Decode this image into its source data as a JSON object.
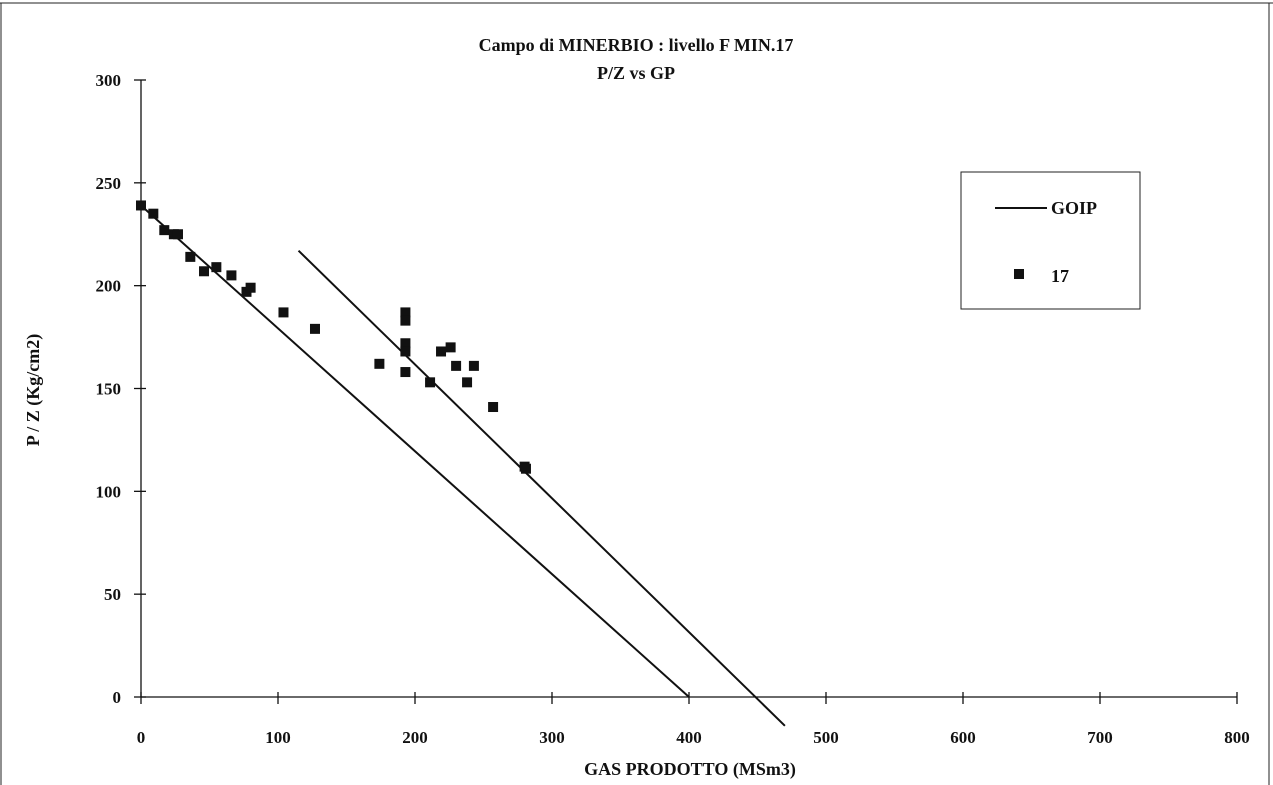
{
  "chart_data": {
    "type": "scatter",
    "title": "Campo di MINERBIO : livello F MIN.17",
    "subtitle": "P/Z vs GP",
    "xlabel": "GAS PRODOTTO (MSm3)",
    "ylabel": "P / Z (Kg/cm2)",
    "xlim": [
      0,
      800
    ],
    "ylim": [
      0,
      300
    ],
    "x_ticks": [
      "0",
      "100",
      "200",
      "300",
      "400",
      "500",
      "600",
      "700",
      "800"
    ],
    "y_ticks": [
      "0",
      "50",
      "100",
      "150",
      "200",
      "250",
      "300"
    ],
    "grid": false,
    "legend_position": "top-right",
    "series": [
      {
        "name": "GOIP",
        "type": "line",
        "color": "#111111",
        "segments": [
          [
            [
              0,
              239
            ],
            [
              400,
              0
            ]
          ],
          [
            [
              115,
              217
            ],
            [
              470,
              -14
            ]
          ]
        ]
      },
      {
        "name": "17",
        "type": "scatter",
        "marker": "square",
        "color": "#111111",
        "points": [
          [
            0,
            239
          ],
          [
            9,
            235
          ],
          [
            17,
            227
          ],
          [
            24,
            225
          ],
          [
            27,
            225
          ],
          [
            36,
            214
          ],
          [
            46,
            207
          ],
          [
            55,
            209
          ],
          [
            66,
            205
          ],
          [
            77,
            197
          ],
          [
            80,
            199
          ],
          [
            104,
            187
          ],
          [
            127,
            179
          ],
          [
            174,
            162
          ],
          [
            193,
            187
          ],
          [
            193,
            183
          ],
          [
            193,
            172
          ],
          [
            193,
            168
          ],
          [
            193,
            158
          ],
          [
            211,
            153
          ],
          [
            219,
            168
          ],
          [
            226,
            170
          ],
          [
            230,
            161
          ],
          [
            238,
            153
          ],
          [
            243,
            161
          ],
          [
            257,
            141
          ],
          [
            280,
            112
          ],
          [
            281,
            111
          ]
        ]
      }
    ]
  }
}
